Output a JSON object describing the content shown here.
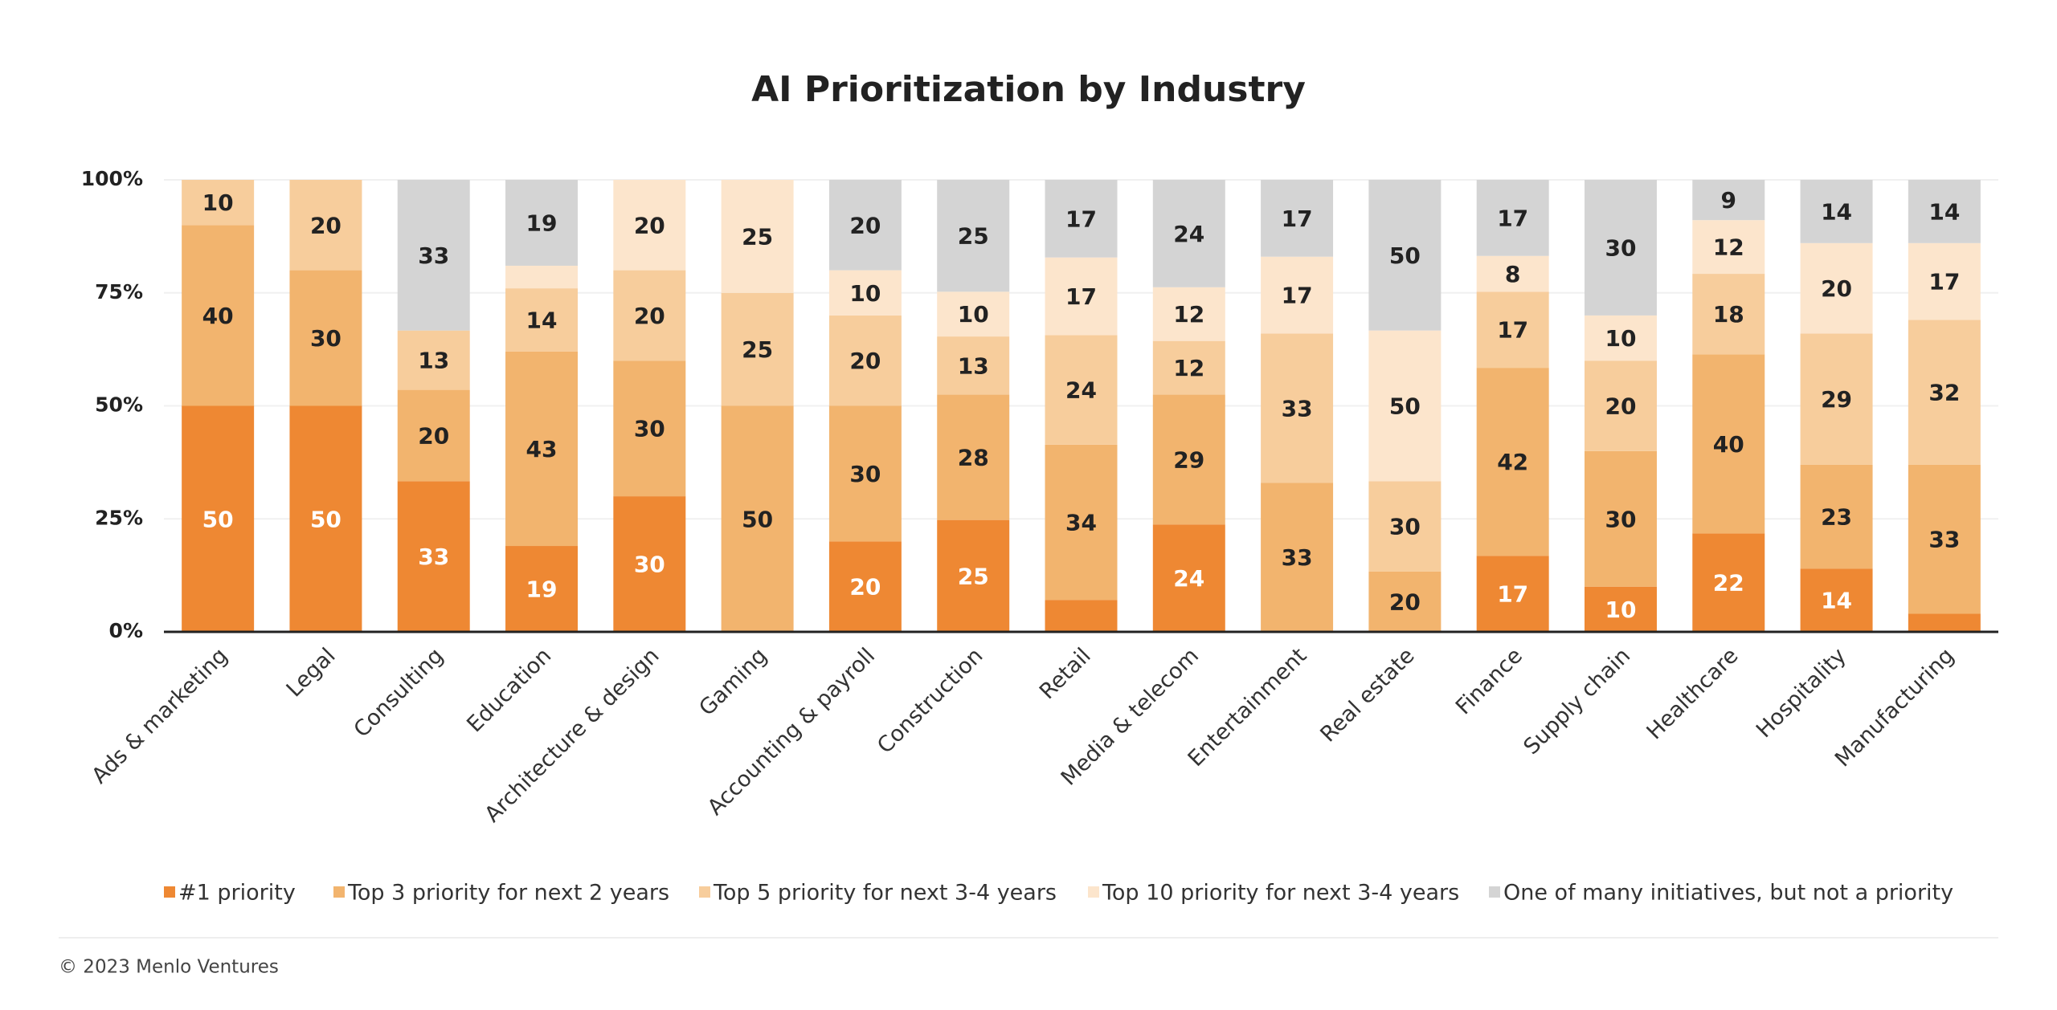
{
  "chart_data": {
    "type": "stacked_bar_percent",
    "title": "AI Prioritization by Industry",
    "categories": [
      "Ads & marketing",
      "Legal",
      "Consulting",
      "Education",
      "Architecture & design",
      "Gaming",
      "Accounting & payroll",
      "Construction",
      "Retail",
      "Media & telecom",
      "Entertainment",
      "Real estate",
      "Finance",
      "Supply chain",
      "Healthcare",
      "Hospitality",
      "Manufacturing"
    ],
    "series": [
      {
        "name": "#1 priority",
        "color": "#ee8833",
        "values": [
          50,
          50,
          33,
          19,
          30,
          0,
          20,
          25,
          7,
          24,
          0,
          0,
          17,
          10,
          22,
          14,
          4
        ]
      },
      {
        "name": "Top 3 priority for next 2 years",
        "color": "#f2b46e",
        "values": [
          40,
          30,
          20,
          43,
          30,
          50,
          30,
          28,
          34,
          29,
          33,
          20,
          42,
          30,
          40,
          23,
          33
        ]
      },
      {
        "name": "Top 5 priority for next 3-4 years",
        "color": "#f7cd9c",
        "values": [
          10,
          20,
          13,
          14,
          20,
          25,
          20,
          13,
          24,
          12,
          33,
          30,
          17,
          20,
          18,
          29,
          32
        ]
      },
      {
        "name": "Top 10 priority for next 3-4 years",
        "color": "#fce5cc",
        "values": [
          0,
          0,
          0,
          5,
          20,
          25,
          10,
          10,
          17,
          12,
          17,
          50,
          8,
          10,
          12,
          20,
          17
        ]
      },
      {
        "name": "One of many initiatives, but not a priority",
        "color": "#d4d4d4",
        "values": [
          0,
          0,
          33,
          19,
          0,
          0,
          20,
          25,
          17,
          24,
          17,
          50,
          17,
          30,
          9,
          14,
          14
        ]
      }
    ],
    "ylim": [
      0,
      100
    ],
    "yticks": [
      {
        "value": 0,
        "label": "0%"
      },
      {
        "value": 25,
        "label": "25%"
      },
      {
        "value": 50,
        "label": "50%"
      },
      {
        "value": 75,
        "label": "75%"
      },
      {
        "value": 100,
        "label": "100%"
      }
    ],
    "grid": true,
    "legend": "bottom"
  },
  "footer": "© 2023 Menlo Ventures"
}
